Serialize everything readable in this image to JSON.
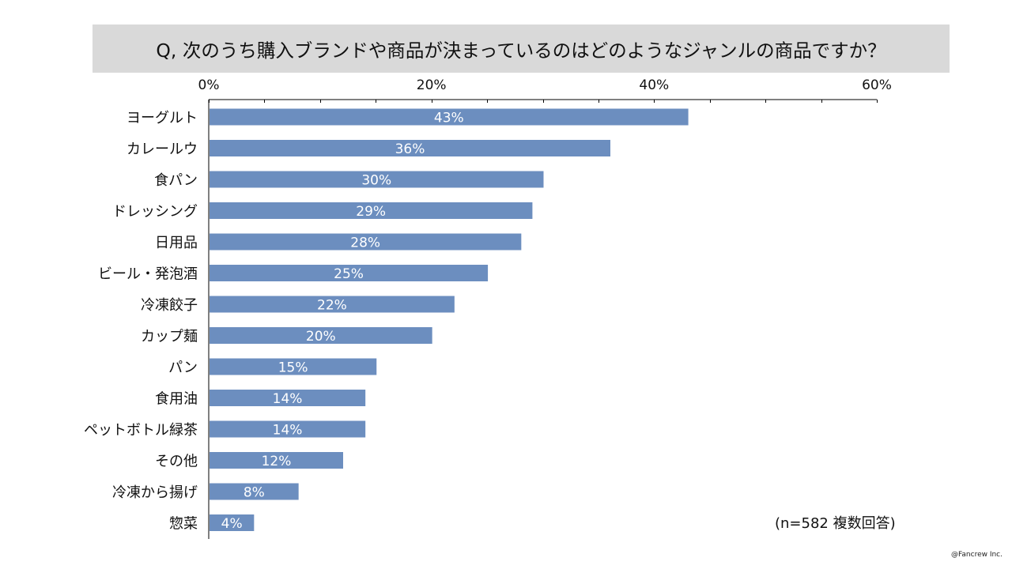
{
  "title": "Q, 次のうち購入ブランドや商品が決まっているのはどのようなジャンルの商品ですか？",
  "note": "(n=582 複数回答)",
  "copyright": "@Fancrew Inc.",
  "colors": {
    "bar": "#6c8ebf",
    "title_background": "#d9d9d9",
    "axis": "#000000"
  },
  "chart_data": {
    "type": "bar",
    "orientation": "horizontal",
    "title": "Q, 次のうち購入ブランドや商品が決まっているのはどのようなジャンルの商品ですか？",
    "categories": [
      "ヨーグルト",
      "カレールウ",
      "食パン",
      "ドレッシング",
      "日用品",
      "ビール・発泡酒",
      "冷凍餃子",
      "カップ麺",
      "パン",
      "食用油",
      "ペットボトル緑茶",
      "その他",
      "冷凍から揚げ",
      "惣菜"
    ],
    "values": [
      43,
      36,
      30,
      29,
      28,
      25,
      22,
      20,
      15,
      14,
      14,
      12,
      8,
      4
    ],
    "data_labels": [
      "43%",
      "36%",
      "30%",
      "29%",
      "28%",
      "25%",
      "22%",
      "20%",
      "15%",
      "14%",
      "14%",
      "12%",
      "8%",
      "4%"
    ],
    "xlim": [
      0,
      60
    ],
    "xticks": [
      0,
      20,
      40,
      60
    ],
    "xtick_labels": [
      "0%",
      "20%",
      "40%",
      "60%"
    ],
    "minor_tick_step": 5,
    "axis_position": "top",
    "xlabel": "",
    "ylabel": "",
    "legend": "none",
    "grid": false
  }
}
